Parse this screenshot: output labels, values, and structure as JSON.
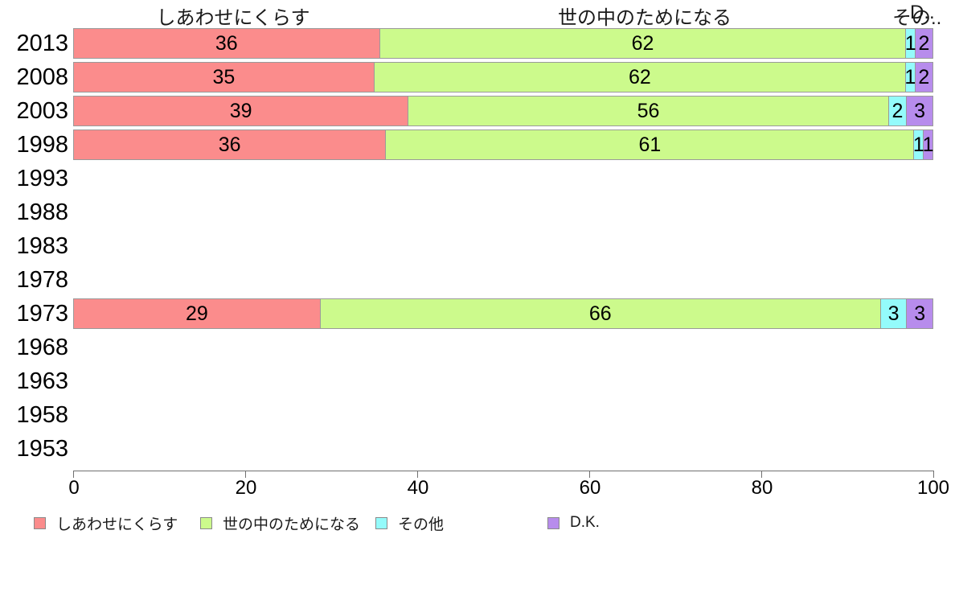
{
  "chart_data": {
    "type": "bar",
    "orientation": "horizontal",
    "stacked": true,
    "grid": false,
    "legend_position": "bottom",
    "x_axis": {
      "min": 0,
      "max": 100,
      "ticks": [
        "0",
        "20",
        "40",
        "60",
        "80",
        "100"
      ]
    },
    "categories": [
      "2013",
      "2008",
      "2003",
      "1998",
      "1993",
      "1988",
      "1983",
      "1978",
      "1973",
      "1968",
      "1963",
      "1958",
      "1953"
    ],
    "series": [
      {
        "name": "しあわせにくらす",
        "color": "#FB8C8C",
        "values": [
          36,
          35,
          39,
          36,
          null,
          null,
          null,
          null,
          29,
          null,
          null,
          null,
          null
        ]
      },
      {
        "name": "世の中のためになる",
        "color": "#CCFA8C",
        "values": [
          62,
          62,
          56,
          61,
          null,
          null,
          null,
          null,
          66,
          null,
          null,
          null,
          null
        ]
      },
      {
        "name": "その他",
        "color": "#94FBFB",
        "values": [
          1,
          1,
          2,
          1,
          null,
          null,
          null,
          null,
          3,
          null,
          null,
          null,
          null
        ]
      },
      {
        "name": "D.K.",
        "color": "#B78CEC",
        "values": [
          2,
          2,
          3,
          1,
          null,
          null,
          null,
          null,
          3,
          null,
          null,
          null,
          null
        ]
      }
    ]
  },
  "column_headers": {
    "header1": "しあわせにくらす",
    "header2": "世の中のためになる",
    "header3_truncated": "その..",
    "header4_truncated": "D.."
  }
}
